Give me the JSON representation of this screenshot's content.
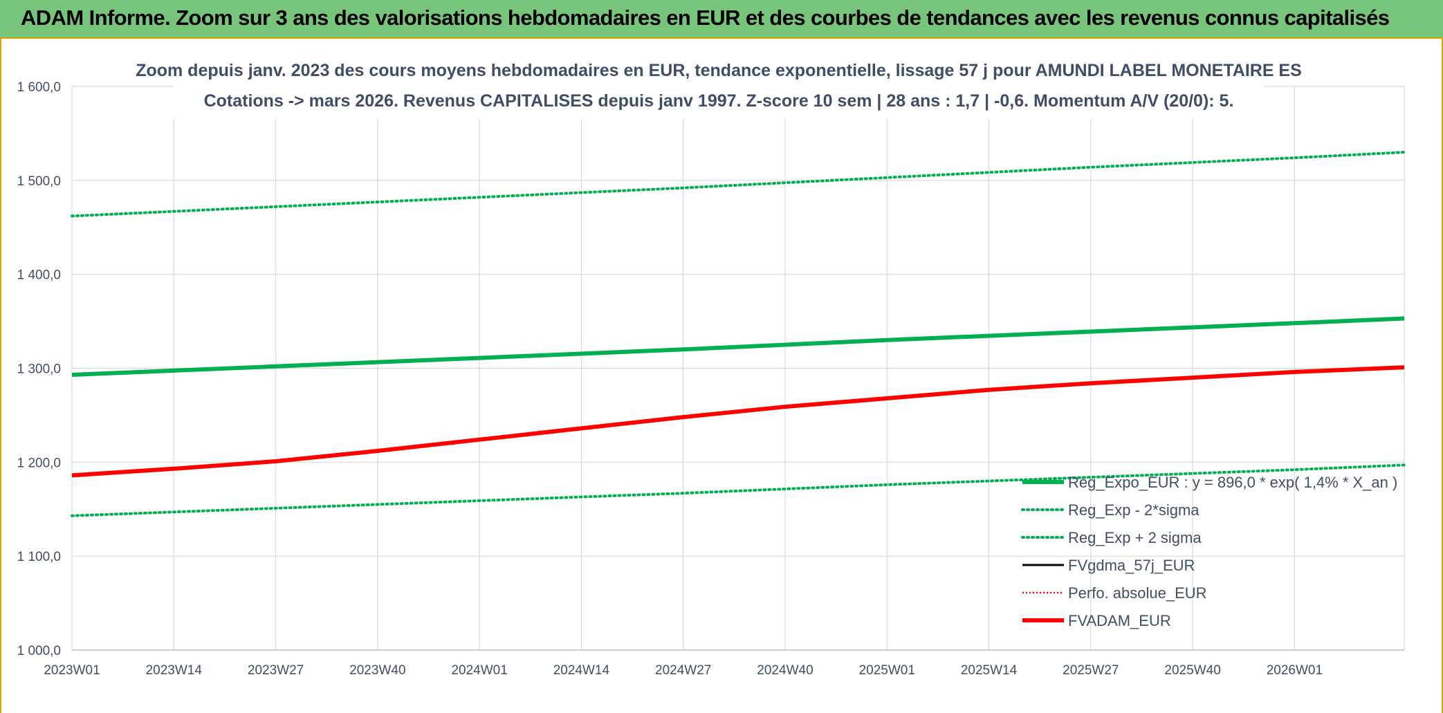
{
  "banner": {
    "title": "ADAM Informe. Zoom sur 3 ans des valorisations hebdomadaires en EUR et des courbes de tendances avec les revenus connus capitalisés"
  },
  "colors": {
    "banner": "#77c57b",
    "frame_border": "#d8a200",
    "reg_expo": "#00b050",
    "fvgdma": "#000000",
    "perfo": "#ff0000",
    "fvadam": "#ff0000",
    "text": "#404d66"
  },
  "chart_data": {
    "type": "line",
    "title": "Zoom depuis janv. 2023 des cours moyens hebdomadaires en EUR, tendance exponentielle, lissage 57 j pour AMUNDI LABEL MONETAIRE ES",
    "subtitle": "Cotations -> mars 2026. Revenus CAPITALISES depuis janv 1997. Z-score 10 sem | 28 ans : 1,7 | -0,6. Momentum A/V (20/0): 5.",
    "xlabel": "",
    "ylabel": "",
    "ylim": [
      1000,
      1600
    ],
    "y_ticks": [
      "1 000,0",
      "1 100,0",
      "1 200,0",
      "1 300,0",
      "1 400,0",
      "1 500,0",
      "1 600,0"
    ],
    "x_range_weeks": [
      0,
      170
    ],
    "x_ticks": [
      {
        "label": "2023W01",
        "week": 0
      },
      {
        "label": "2023W14",
        "week": 13
      },
      {
        "label": "2023W27",
        "week": 26
      },
      {
        "label": "2023W40",
        "week": 39
      },
      {
        "label": "2024W01",
        "week": 52
      },
      {
        "label": "2024W14",
        "week": 65
      },
      {
        "label": "2024W27",
        "week": 78
      },
      {
        "label": "2024W40",
        "week": 91
      },
      {
        "label": "2025W01",
        "week": 104
      },
      {
        "label": "2025W14",
        "week": 117
      },
      {
        "label": "2025W27",
        "week": 130
      },
      {
        "label": "2025W40",
        "week": 143
      },
      {
        "label": "2026W01",
        "week": 156
      }
    ],
    "grid": true,
    "legend_position": "bottom-right",
    "series": [
      {
        "name": "Reg_Expo_EUR : y = 896,0 * exp( 1,4% *  X_an )",
        "style": "solid-thick",
        "color": "#00b050",
        "x": [
          0,
          26,
          52,
          78,
          104,
          130,
          156,
          170
        ],
        "y": [
          1293,
          1302,
          1311,
          1320,
          1330,
          1339,
          1348,
          1353
        ]
      },
      {
        "name": "Reg_Exp - 2*sigma",
        "style": "dotted",
        "color": "#00b050",
        "x": [
          0,
          26,
          52,
          78,
          104,
          130,
          156,
          170
        ],
        "y": [
          1143,
          1151,
          1159,
          1167,
          1176,
          1184,
          1192,
          1197
        ]
      },
      {
        "name": "Reg_Exp + 2 sigma",
        "style": "dotted",
        "color": "#00b050",
        "x": [
          0,
          26,
          52,
          78,
          104,
          130,
          156,
          170
        ],
        "y": [
          1462,
          1472,
          1482,
          1492,
          1503,
          1514,
          1524,
          1530
        ]
      },
      {
        "name": "FVgdma_57j_EUR",
        "style": "solid",
        "color": "#000000",
        "x": [
          0,
          13,
          26,
          39,
          52,
          65,
          78,
          91,
          104,
          117,
          130,
          143,
          156,
          170
        ],
        "y": [
          1186,
          1193,
          1201,
          1212,
          1224,
          1236,
          1248,
          1259,
          1268,
          1277,
          1284,
          1290,
          1296,
          1301
        ]
      },
      {
        "name": "Perfo. absolue_EUR",
        "style": "dotted-thin",
        "color": "#ff0000",
        "x": [
          0,
          13,
          26,
          39,
          52,
          65,
          78,
          91,
          104,
          117,
          130,
          143,
          156,
          170
        ],
        "y": [
          1186,
          1193,
          1201,
          1212,
          1224,
          1236,
          1248,
          1259,
          1268,
          1277,
          1284,
          1290,
          1296,
          1301
        ]
      },
      {
        "name": "FVADAM_EUR",
        "style": "solid-thick",
        "color": "#ff0000",
        "x": [
          0,
          13,
          26,
          39,
          52,
          65,
          78,
          91,
          104,
          117,
          130,
          143,
          156,
          170
        ],
        "y": [
          1186,
          1193,
          1201,
          1212,
          1224,
          1236,
          1248,
          1259,
          1268,
          1277,
          1284,
          1290,
          1296,
          1301
        ]
      }
    ]
  }
}
